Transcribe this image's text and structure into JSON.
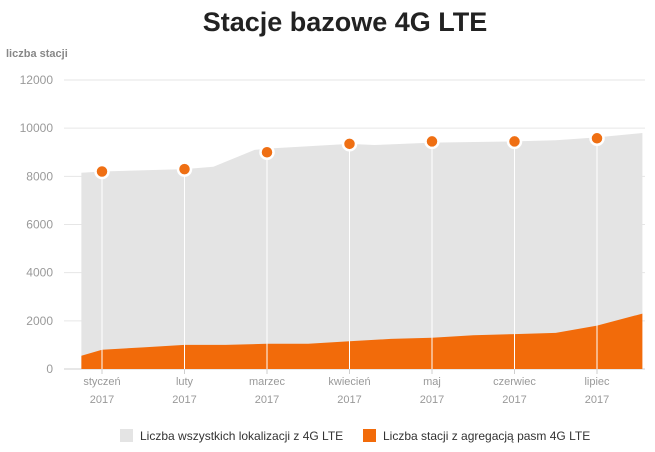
{
  "chart_data": {
    "type": "area",
    "title": "Stacje bazowe 4G LTE",
    "ylabel": "liczba stacji",
    "xlabel": "",
    "ylim": [
      0,
      12000
    ],
    "yticks": [
      0,
      2000,
      4000,
      6000,
      8000,
      10000,
      12000
    ],
    "grid": true,
    "legend_position": "bottom",
    "categories": [
      [
        "styczeń",
        "2017"
      ],
      [
        "luty",
        "2017"
      ],
      [
        "marzec",
        "2017"
      ],
      [
        "kwiecień",
        "2017"
      ],
      [
        "maj",
        "2017"
      ],
      [
        "czerwiec",
        "2017"
      ],
      [
        "lipiec",
        "2017"
      ]
    ],
    "series": [
      {
        "name": "Liczba wszystkich lokalizacji z 4G LTE",
        "color": "#e4e4e4",
        "marker_color": "#ef6f13",
        "values": [
          8200,
          8300,
          9000,
          9350,
          9450,
          9450,
          9580
        ],
        "area": [
          {
            "x": -0.25,
            "y": 8150
          },
          {
            "x": 0,
            "y": 8200
          },
          {
            "x": 1,
            "y": 8300
          },
          {
            "x": 1.35,
            "y": 8400
          },
          {
            "x": 1.85,
            "y": 9100
          },
          {
            "x": 2,
            "y": 9150
          },
          {
            "x": 3,
            "y": 9350
          },
          {
            "x": 3.3,
            "y": 9300
          },
          {
            "x": 4,
            "y": 9400
          },
          {
            "x": 5,
            "y": 9450
          },
          {
            "x": 5.5,
            "y": 9500
          },
          {
            "x": 6,
            "y": 9620
          },
          {
            "x": 6.55,
            "y": 9800
          }
        ]
      },
      {
        "name": "Liczba stacji z agregacją pasm 4G LTE",
        "color": "#f26b0a",
        "area": [
          {
            "x": -0.25,
            "y": 550
          },
          {
            "x": 0,
            "y": 800
          },
          {
            "x": 0.5,
            "y": 900
          },
          {
            "x": 1,
            "y": 1000
          },
          {
            "x": 1.5,
            "y": 1000
          },
          {
            "x": 2,
            "y": 1050
          },
          {
            "x": 2.5,
            "y": 1050
          },
          {
            "x": 3,
            "y": 1150
          },
          {
            "x": 3.5,
            "y": 1250
          },
          {
            "x": 4,
            "y": 1300
          },
          {
            "x": 4.5,
            "y": 1400
          },
          {
            "x": 5,
            "y": 1450
          },
          {
            "x": 5.5,
            "y": 1500
          },
          {
            "x": 6,
            "y": 1800
          },
          {
            "x": 6.55,
            "y": 2300
          }
        ]
      }
    ]
  }
}
